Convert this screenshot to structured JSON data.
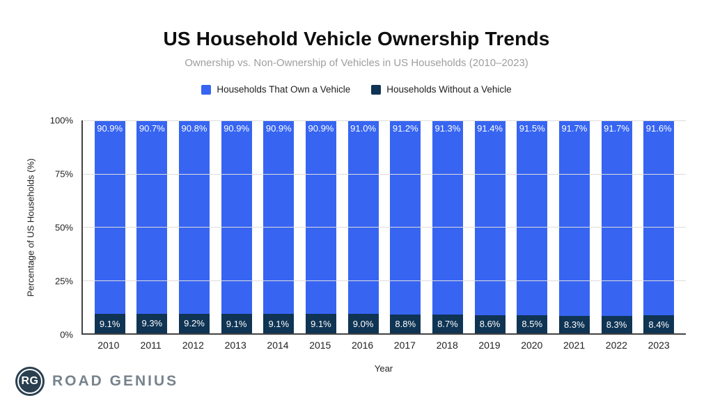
{
  "page": {
    "title": "US Household Vehicle Ownership Trends",
    "subtitle": "Ownership vs. Non-Ownership of Vehicles in US Households (2010–2023)"
  },
  "colors": {
    "own_blue": "#3765F2",
    "without_navy": "#0F3454",
    "logo_circle": "#2A4050",
    "logo_text": "#76838d"
  },
  "legend": {
    "items": [
      {
        "label": "Households That Own a Vehicle",
        "color": "#3765F2"
      },
      {
        "label": "Households Without a Vehicle",
        "color": "#0F3454"
      }
    ]
  },
  "chart_data": {
    "type": "bar",
    "stacked": true,
    "title": "US Household Vehicle Ownership Trends",
    "subtitle": "Ownership vs. Non-Ownership of Vehicles in US Households (2010–2023)",
    "categories": [
      "2010",
      "2011",
      "2012",
      "2013",
      "2014",
      "2015",
      "2016",
      "2017",
      "2018",
      "2019",
      "2020",
      "2021",
      "2022",
      "2023"
    ],
    "series": [
      {
        "name": "Households That Own a Vehicle",
        "color": "#3765F2",
        "values": [
          90.9,
          90.7,
          90.8,
          90.9,
          90.9,
          90.9,
          91.0,
          91.2,
          91.3,
          91.4,
          91.5,
          91.7,
          91.7,
          91.6
        ],
        "labels": [
          "90.9%",
          "90.7%",
          "90.8%",
          "90.9%",
          "90.9%",
          "90.9%",
          "91.0%",
          "91.2%",
          "91.3%",
          "91.4%",
          "91.5%",
          "91.7%",
          "91.7%",
          "91.6%"
        ]
      },
      {
        "name": "Households Without a Vehicle",
        "color": "#0F3454",
        "values": [
          9.1,
          9.3,
          9.2,
          9.1,
          9.1,
          9.1,
          9.0,
          8.8,
          8.7,
          8.6,
          8.5,
          8.3,
          8.3,
          8.4
        ],
        "labels": [
          "9.1%",
          "9.3%",
          "9.2%",
          "9.1%",
          "9.1%",
          "9.1%",
          "9.0%",
          "8.8%",
          "8.7%",
          "8.6%",
          "8.5%",
          "8.3%",
          "8.3%",
          "8.4%"
        ]
      }
    ],
    "xlabel": "Year",
    "ylabel": "Percentage of US Households (%)",
    "ylim": [
      0,
      100
    ],
    "y_ticks": [
      {
        "label": "0%",
        "value": 0
      },
      {
        "label": "25%",
        "value": 25
      },
      {
        "label": "50%",
        "value": 50
      },
      {
        "label": "75%",
        "value": 75
      },
      {
        "label": "100%",
        "value": 100
      }
    ],
    "grid": true,
    "legend_position": "top"
  },
  "footer": {
    "logo_monogram": "RG",
    "logo_text": "ROAD GENIUS"
  }
}
